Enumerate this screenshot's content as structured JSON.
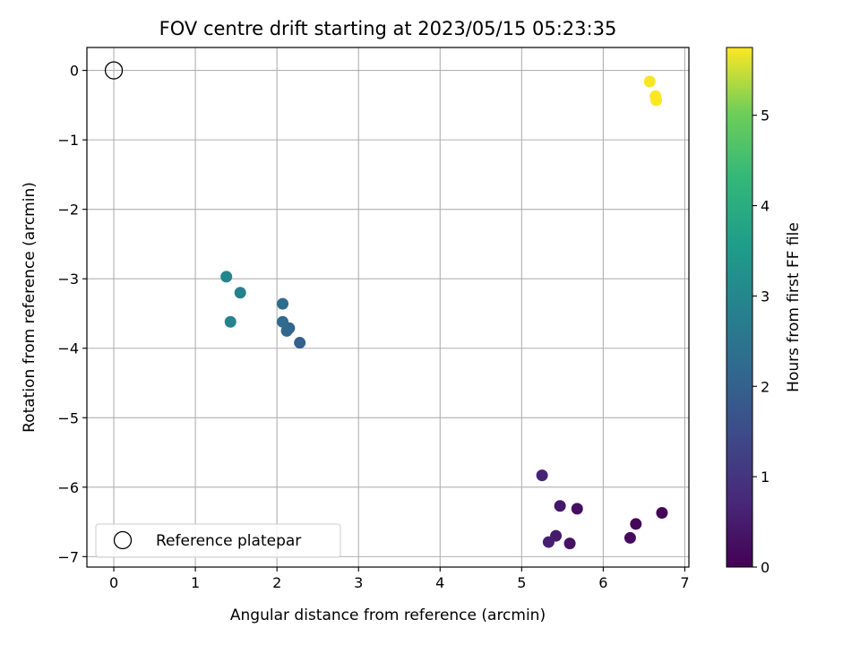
{
  "chart_data": {
    "type": "scatter",
    "title": "FOV centre drift starting at 2023/05/15 05:23:35",
    "xlabel": "Angular distance from reference (arcmin)",
    "ylabel": "Rotation from reference (arcmin)",
    "xlim": [
      -0.33,
      7.05
    ],
    "ylim": [
      -7.15,
      0.33
    ],
    "xticks": [
      0,
      1,
      2,
      3,
      4,
      5,
      6,
      7
    ],
    "yticks": [
      0,
      -1,
      -2,
      -3,
      -4,
      -5,
      -6,
      -7
    ],
    "xtick_labels": [
      "0",
      "1",
      "2",
      "3",
      "4",
      "5",
      "6",
      "7"
    ],
    "ytick_labels": [
      "0",
      "−1",
      "−2",
      "−3",
      "−4",
      "−5",
      "−6",
      "−7"
    ],
    "grid": true,
    "colormap": "viridis",
    "colorbar": {
      "label": "Hours from first FF file",
      "range": [
        0,
        5.75
      ],
      "ticks": [
        0,
        1,
        2,
        3,
        4,
        5
      ],
      "tick_labels": [
        "0",
        "1",
        "2",
        "3",
        "4",
        "5"
      ]
    },
    "legend": {
      "placement": "lower-left",
      "entries": [
        "Reference platepar"
      ]
    },
    "reference_point": {
      "x": 0,
      "y": 0,
      "marker": "open-circle",
      "edge_color": "#000000"
    },
    "points": [
      {
        "x": 6.72,
        "y": -6.37,
        "hours": 0.05
      },
      {
        "x": 6.4,
        "y": -6.53,
        "hours": 0.12
      },
      {
        "x": 6.33,
        "y": -6.73,
        "hours": 0.18
      },
      {
        "x": 5.68,
        "y": -6.31,
        "hours": 0.25
      },
      {
        "x": 5.59,
        "y": -6.81,
        "hours": 0.32
      },
      {
        "x": 5.47,
        "y": -6.27,
        "hours": 0.4
      },
      {
        "x": 5.42,
        "y": -6.7,
        "hours": 0.47
      },
      {
        "x": 5.33,
        "y": -6.79,
        "hours": 0.55
      },
      {
        "x": 5.25,
        "y": -5.83,
        "hours": 0.62
      },
      {
        "x": 2.28,
        "y": -3.92,
        "hours": 2.0
      },
      {
        "x": 2.15,
        "y": -3.71,
        "hours": 2.1
      },
      {
        "x": 2.12,
        "y": -3.75,
        "hours": 2.15
      },
      {
        "x": 2.07,
        "y": -3.62,
        "hours": 2.2
      },
      {
        "x": 2.07,
        "y": -3.36,
        "hours": 2.3
      },
      {
        "x": 1.55,
        "y": -3.2,
        "hours": 2.85
      },
      {
        "x": 1.43,
        "y": -3.62,
        "hours": 2.9
      },
      {
        "x": 1.38,
        "y": -2.97,
        "hours": 2.95
      },
      {
        "x": 6.57,
        "y": -0.16,
        "hours": 5.72
      },
      {
        "x": 6.64,
        "y": -0.37,
        "hours": 5.74
      },
      {
        "x": 6.65,
        "y": -0.43,
        "hours": 5.75
      }
    ]
  }
}
